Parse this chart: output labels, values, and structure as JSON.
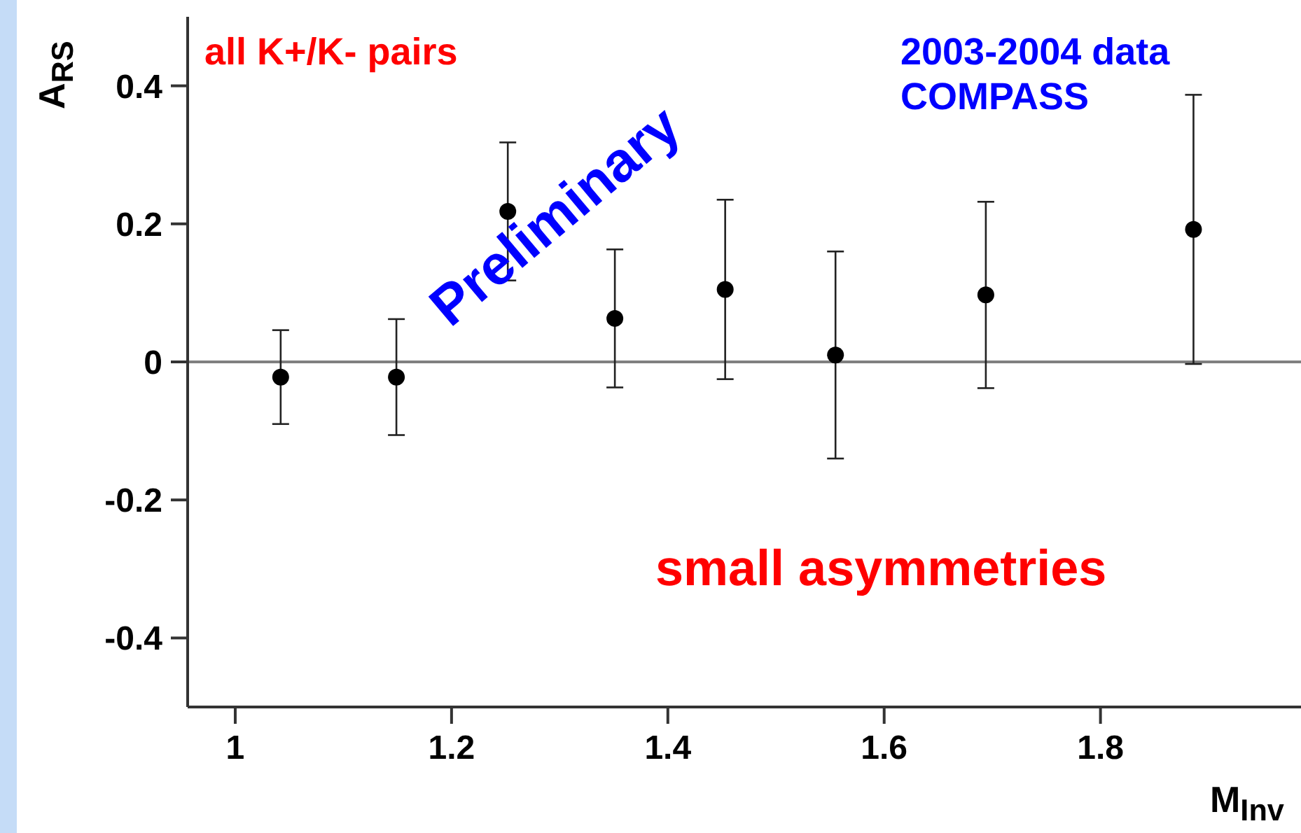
{
  "chart_data": {
    "type": "scatter",
    "xlabel": "M$_{Inv}$",
    "ylabel": "A$_{RS}$",
    "annotations": [
      "all K+/K- pairs",
      "2003-2004 data",
      "COMPASS",
      "Preliminary",
      "small asymmetries"
    ],
    "x": [
      1.042,
      1.149,
      1.252,
      1.351,
      1.453,
      1.555,
      1.694,
      1.886
    ],
    "values": [
      -0.022,
      -0.022,
      0.218,
      0.063,
      0.105,
      0.01,
      0.097,
      0.192
    ],
    "errors": [
      0.068,
      0.084,
      0.1,
      0.1,
      0.13,
      0.15,
      0.135,
      0.195
    ],
    "color": "#000000",
    "marker": "circle",
    "grid": false,
    "legend": false,
    "xlim": [
      0.956,
      1.988
    ],
    "xticks": [
      1,
      1.2,
      1.4,
      1.6,
      1.8
    ],
    "ylim": [
      -0.5,
      0.5
    ],
    "yticks": [
      -0.4,
      -0.2,
      0,
      0.2,
      0.4
    ],
    "ref_lines": [
      {
        "axis": "y",
        "value": 0,
        "color": "#808080"
      }
    ]
  }
}
